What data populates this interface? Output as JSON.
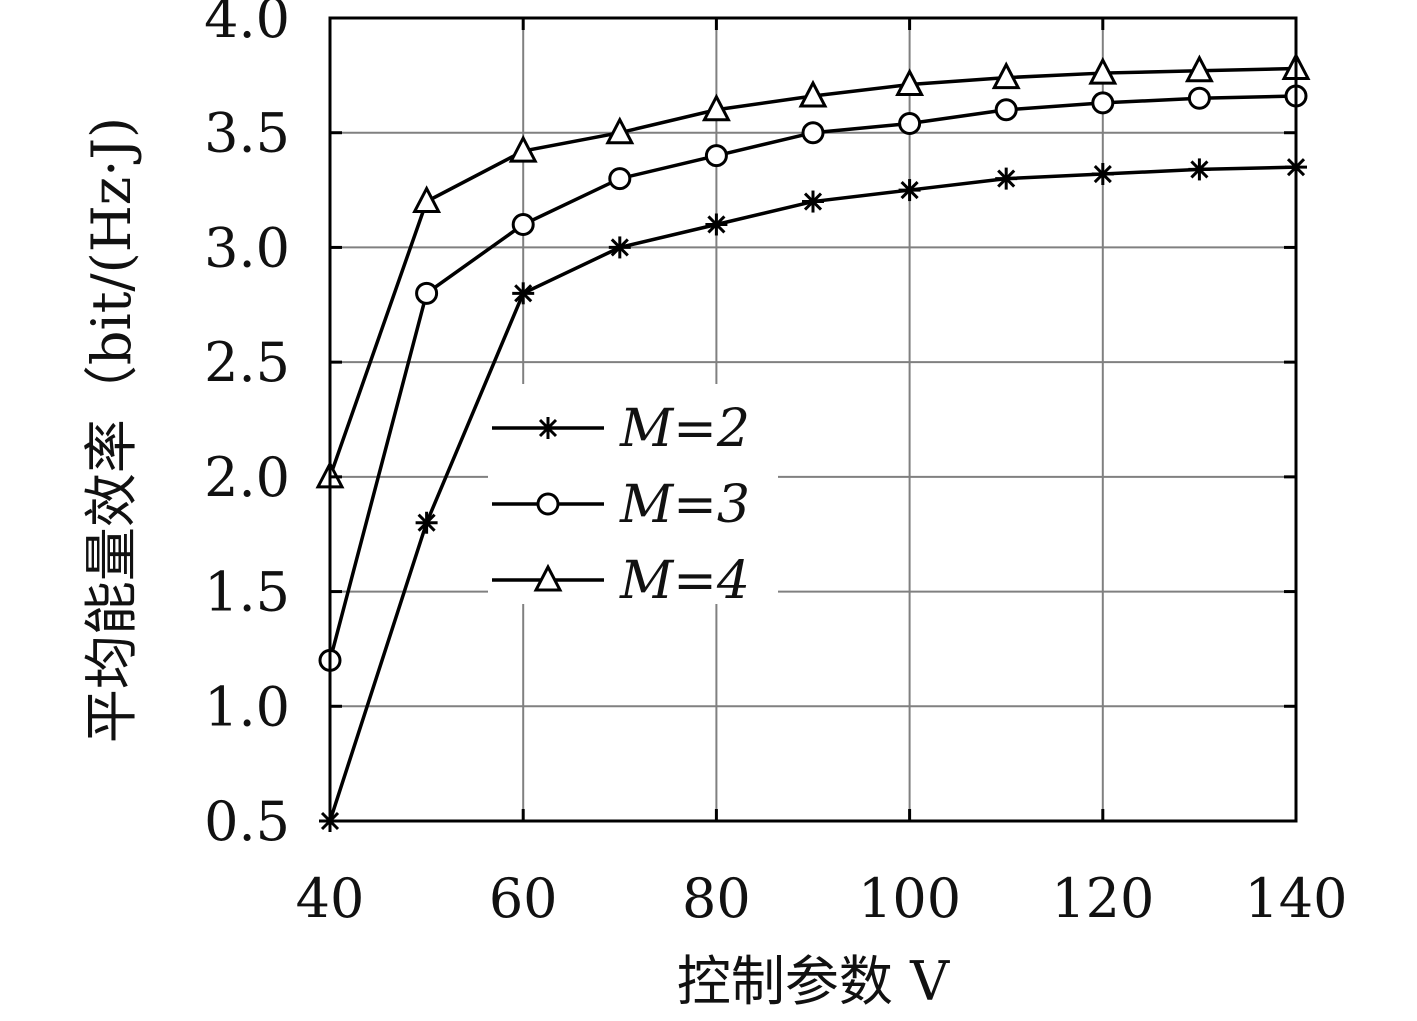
{
  "chart_data": {
    "type": "line",
    "xlabel": "控制参数 V",
    "ylabel": "平均能量效率（bit/(Hz·J)",
    "x": [
      40,
      50,
      60,
      70,
      80,
      90,
      100,
      110,
      120,
      130,
      140
    ],
    "xlim": [
      40,
      140
    ],
    "ylim": [
      0.5,
      4.0
    ],
    "xticks": [
      "40",
      "60",
      "80",
      "100",
      "120",
      "140"
    ],
    "yticks": [
      "0.5",
      "1.0",
      "1.5",
      "2.0",
      "2.5",
      "3.0",
      "3.5",
      "4.0"
    ],
    "grid": true,
    "legend_position": "center-left",
    "series": [
      {
        "name": "M=2",
        "marker": "asterisk",
        "values": [
          0.5,
          1.8,
          2.8,
          3.0,
          3.1,
          3.2,
          3.25,
          3.3,
          3.32,
          3.34,
          3.35
        ]
      },
      {
        "name": "M=3",
        "marker": "circle",
        "values": [
          1.2,
          2.8,
          3.1,
          3.3,
          3.4,
          3.5,
          3.54,
          3.6,
          3.63,
          3.65,
          3.66
        ]
      },
      {
        "name": "M=4",
        "marker": "triangle",
        "values": [
          2.0,
          3.2,
          3.42,
          3.5,
          3.6,
          3.66,
          3.71,
          3.74,
          3.76,
          3.77,
          3.78
        ]
      }
    ],
    "colors": {
      "line": "#000000",
      "grid": "#808080",
      "frame": "#000000"
    }
  }
}
